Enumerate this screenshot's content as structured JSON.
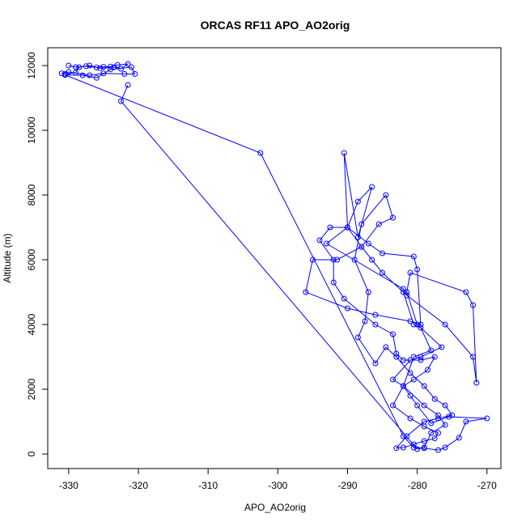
{
  "chart_data": {
    "type": "line",
    "title": "ORCAS RF11 APO_AO2orig",
    "xlabel": "APO_AO2orig",
    "ylabel": "Altitude (m)",
    "xlim": [
      -333,
      -268
    ],
    "ylim": [
      -450,
      12550
    ],
    "xticks": [
      -330,
      -320,
      -310,
      -300,
      -290,
      -280,
      -270
    ],
    "yticks": [
      0,
      2000,
      4000,
      6000,
      8000,
      10000,
      12000
    ],
    "grid": false,
    "markers": "open-circle",
    "line_color": "#0000ff",
    "series": [
      {
        "values": [
          [
            -330.0,
            12000
          ],
          [
            -329.0,
            11950
          ],
          [
            -327.5,
            11980
          ],
          [
            -326.0,
            11940
          ],
          [
            -325.0,
            11960
          ],
          [
            -324.0,
            11970
          ],
          [
            -323.0,
            12020
          ],
          [
            -321.5,
            12050
          ],
          [
            -322.5,
            11900
          ],
          [
            -323.5,
            11950
          ],
          [
            -325.5,
            11920
          ],
          [
            -327.0,
            12000
          ],
          [
            -328.5,
            11950
          ],
          [
            -329.0,
            11780
          ],
          [
            -330.5,
            11740
          ],
          [
            -331.0,
            11760
          ],
          [
            -330.0,
            11800
          ],
          [
            -327.0,
            11700
          ],
          [
            -325.0,
            11760
          ],
          [
            -322.0,
            11740
          ],
          [
            -320.5,
            11740
          ],
          [
            -321.0,
            11950
          ],
          [
            -324.0,
            11880
          ],
          [
            -326.0,
            11620
          ],
          [
            -328.0,
            11700
          ],
          [
            -330.5,
            11710
          ],
          [
            -302.5,
            9300
          ],
          [
            -282.0,
            550
          ],
          [
            -280.5,
            200
          ],
          [
            -279.0,
            180
          ],
          [
            -277.0,
            120
          ],
          [
            -276.0,
            200
          ],
          [
            -274.0,
            500
          ],
          [
            -273.0,
            1000
          ],
          [
            -270.0,
            1100
          ],
          [
            -275.5,
            1150
          ],
          [
            -278.0,
            950
          ],
          [
            -280.0,
            1500
          ],
          [
            -281.0,
            1800
          ],
          [
            -282.0,
            2100
          ],
          [
            -280.5,
            2300
          ],
          [
            -278.5,
            2600
          ],
          [
            -277.5,
            3000
          ],
          [
            -279.5,
            2900
          ],
          [
            -282.0,
            2900
          ],
          [
            -283.0,
            3100
          ],
          [
            -283.5,
            3700
          ],
          [
            -286.0,
            4000
          ],
          [
            -290.5,
            4800
          ],
          [
            -292.0,
            5300
          ],
          [
            -292.0,
            6000
          ],
          [
            -294.0,
            6600
          ],
          [
            -292.5,
            7000
          ],
          [
            -290.0,
            7000
          ],
          [
            -288.5,
            7800
          ],
          [
            -286.5,
            8250
          ],
          [
            -288.5,
            6700
          ],
          [
            -290.5,
            9300
          ],
          [
            -290.0,
            7000
          ],
          [
            -288.0,
            6400
          ],
          [
            -286.5,
            6000
          ],
          [
            -285.0,
            5600
          ],
          [
            -282.0,
            5000
          ],
          [
            -280.5,
            4000
          ],
          [
            -279.5,
            3900
          ],
          [
            -278.0,
            3200
          ],
          [
            -280.5,
            3000
          ],
          [
            -282.0,
            2100
          ],
          [
            -283.5,
            1500
          ],
          [
            -281.0,
            1100
          ],
          [
            -279.0,
            850
          ],
          [
            -277.0,
            650
          ],
          [
            -277.5,
            480
          ],
          [
            -279.0,
            400
          ],
          [
            -280.5,
            300
          ],
          [
            -282.0,
            200
          ],
          [
            -283.0,
            180
          ],
          [
            -281.5,
            550
          ],
          [
            -279.0,
            1000
          ],
          [
            -277.0,
            1100
          ],
          [
            -275.0,
            1200
          ],
          [
            -276.0,
            1500
          ],
          [
            -277.5,
            1700
          ],
          [
            -279.0,
            2100
          ],
          [
            -281.0,
            2500
          ],
          [
            -283.0,
            3000
          ],
          [
            -284.5,
            3300
          ],
          [
            -286.0,
            2800
          ],
          [
            -288.5,
            3600
          ],
          [
            -287.5,
            4100
          ],
          [
            -287.0,
            5000
          ],
          [
            -289.0,
            6000
          ],
          [
            -288.0,
            7100
          ],
          [
            -284.5,
            8000
          ],
          [
            -283.5,
            7300
          ],
          [
            -285.5,
            7100
          ],
          [
            -288.0,
            6400
          ],
          [
            -291.5,
            6000
          ],
          [
            -295.0,
            6000
          ],
          [
            -296.0,
            5000
          ],
          [
            -290.0,
            4500
          ],
          [
            -286.0,
            4300
          ],
          [
            -281.0,
            4100
          ],
          [
            -279.5,
            4000
          ],
          [
            -280.0,
            5700
          ],
          [
            -280.5,
            6100
          ],
          [
            -285.0,
            6200
          ],
          [
            -287.0,
            6500
          ],
          [
            -290.0,
            7000
          ],
          [
            -293.0,
            6500
          ],
          [
            -282.0,
            5100
          ],
          [
            -281.5,
            4900
          ],
          [
            -276.0,
            4000
          ],
          [
            -272.0,
            3000
          ],
          [
            -271.5,
            2200
          ],
          [
            -272.0,
            4600
          ],
          [
            -273.0,
            5000
          ],
          [
            -281.0,
            5600
          ],
          [
            -281.5,
            5000
          ],
          [
            -280.0,
            4000
          ],
          [
            -276.5,
            3300
          ],
          [
            -279.5,
            3000
          ],
          [
            -281.0,
            2900
          ],
          [
            -283.5,
            2300
          ],
          [
            -282.0,
            2100
          ],
          [
            -279.0,
            1500
          ],
          [
            -277.0,
            1200
          ],
          [
            -276.0,
            900
          ],
          [
            -278.0,
            650
          ],
          [
            -279.0,
            200
          ],
          [
            -280.0,
            150
          ],
          [
            -322.5,
            10900
          ],
          [
            -321.5,
            11400
          ]
        ]
      }
    ]
  }
}
